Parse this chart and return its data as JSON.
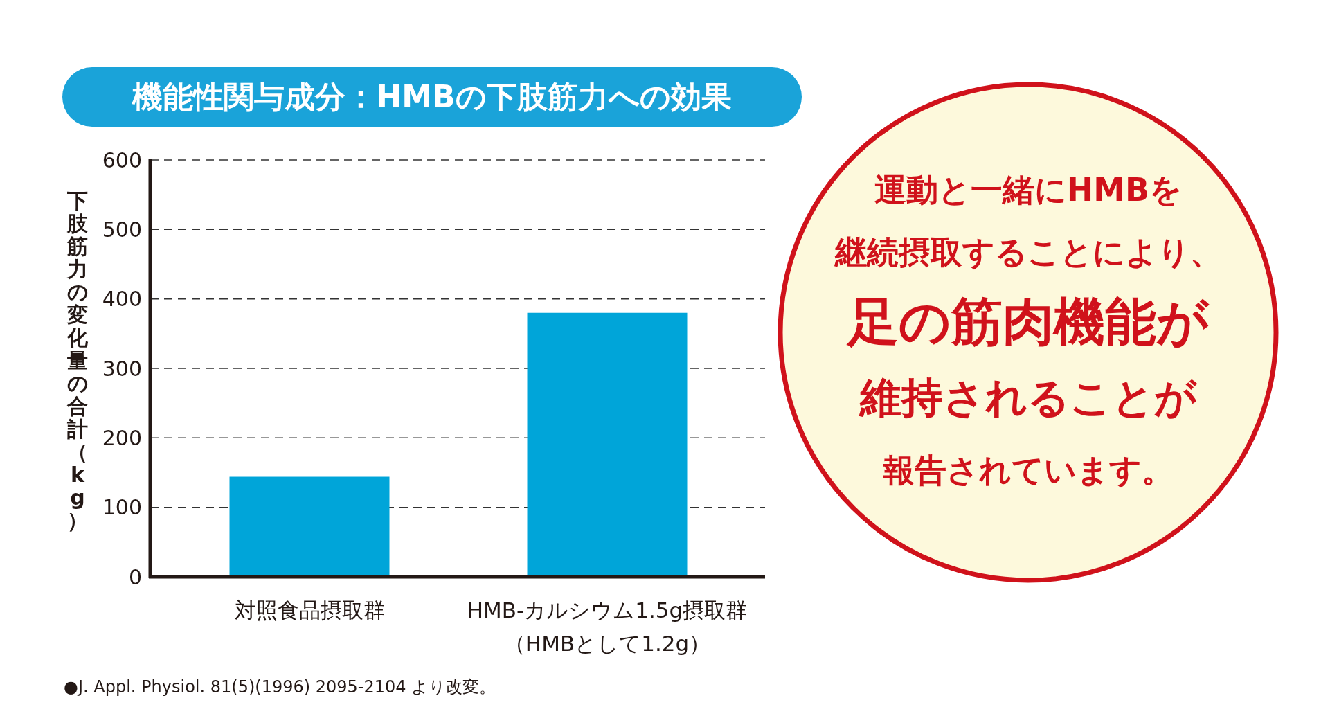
{
  "chart_data": {
    "type": "bar",
    "title": "機能性関与成分：HMBの下肢筋力への効果",
    "ylabel": "下肢筋力の変化量の合計（kg）",
    "categories": [
      "対照食品摂取群",
      "HMB-カルシウム1.5g摂取群（HMBとして1.2g）"
    ],
    "values": [
      144,
      380
    ],
    "color": "#00a5d9",
    "ylim": [
      0,
      600
    ],
    "yticks": [
      0,
      100,
      200,
      300,
      400,
      500,
      600
    ],
    "grid": "y",
    "annotations": [
      "運動と一緒にHMBを",
      "継続摂取することにより、",
      "足の筋肉機能が",
      "維持されることが",
      "報告されています。",
      "●J. Appl. Physiol. 81(5)(1996) 2095-2104 より改変。"
    ]
  }
}
